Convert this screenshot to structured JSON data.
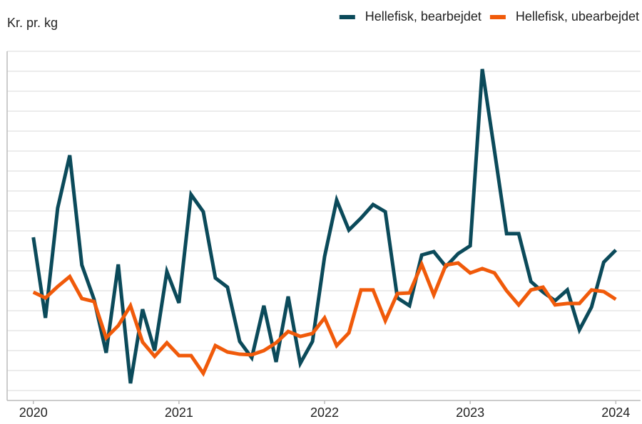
{
  "chart_data": {
    "type": "line",
    "ylabel": "Kr. pr. kg",
    "x": [
      2020,
      2020.083,
      2020.167,
      2020.25,
      2020.333,
      2020.417,
      2020.5,
      2020.583,
      2020.667,
      2020.75,
      2020.833,
      2020.917,
      2021,
      2021.083,
      2021.167,
      2021.25,
      2021.333,
      2021.417,
      2021.5,
      2021.583,
      2021.667,
      2021.75,
      2021.833,
      2021.917,
      2022,
      2022.083,
      2022.167,
      2022.25,
      2022.333,
      2022.417,
      2022.5,
      2022.583,
      2022.667,
      2022.75,
      2022.833,
      2022.917,
      2023,
      2023.083,
      2023.167,
      2023.25,
      2023.333,
      2023.417,
      2023.5,
      2023.583,
      2023.667,
      2023.75,
      2023.833,
      2023.917,
      2024
    ],
    "xlim": [
      2019.82,
      2024.17
    ],
    "xticks": [
      2020,
      2021,
      2022,
      2023,
      2024
    ],
    "ylim": [
      0.5,
      18
    ],
    "yticks": [
      1,
      2,
      3,
      4,
      5,
      6,
      7,
      8,
      9,
      10,
      11,
      12,
      13,
      14,
      15,
      16,
      17
    ],
    "grid": true,
    "legend": "top-right",
    "series": [
      {
        "name": "Hellefisk, bearbejdet",
        "color": "#0b4a5a",
        "values": [
          8.68,
          4.64,
          10.14,
          12.79,
          7.29,
          5.57,
          2.89,
          7.32,
          1.36,
          5.07,
          3.0,
          6.96,
          5.39,
          10.82,
          9.96,
          6.64,
          6.18,
          3.46,
          2.64,
          5.25,
          2.43,
          5.71,
          2.36,
          3.46,
          7.71,
          10.54,
          9.04,
          9.64,
          10.32,
          9.96,
          5.64,
          5.25,
          7.79,
          7.96,
          7.21,
          7.86,
          8.25,
          17.11,
          13.0,
          8.86,
          8.86,
          6.46,
          5.93,
          5.5,
          6.04,
          4.04,
          5.18,
          7.43,
          8.04
        ]
      },
      {
        "name": "Hellefisk, ubearbejdet",
        "color": "#f05a0a",
        "values": [
          5.93,
          5.64,
          6.21,
          6.71,
          5.61,
          5.46,
          3.64,
          4.25,
          5.25,
          3.43,
          2.71,
          3.39,
          2.75,
          2.75,
          1.86,
          3.25,
          2.93,
          2.82,
          2.79,
          3.0,
          3.39,
          3.96,
          3.71,
          3.86,
          4.64,
          3.25,
          3.89,
          6.04,
          6.04,
          4.5,
          5.86,
          5.89,
          7.32,
          5.79,
          7.29,
          7.39,
          6.89,
          7.11,
          6.89,
          6.0,
          5.29,
          6.04,
          6.18,
          5.29,
          5.36,
          5.36,
          6.04,
          5.96,
          5.57
        ]
      }
    ]
  }
}
